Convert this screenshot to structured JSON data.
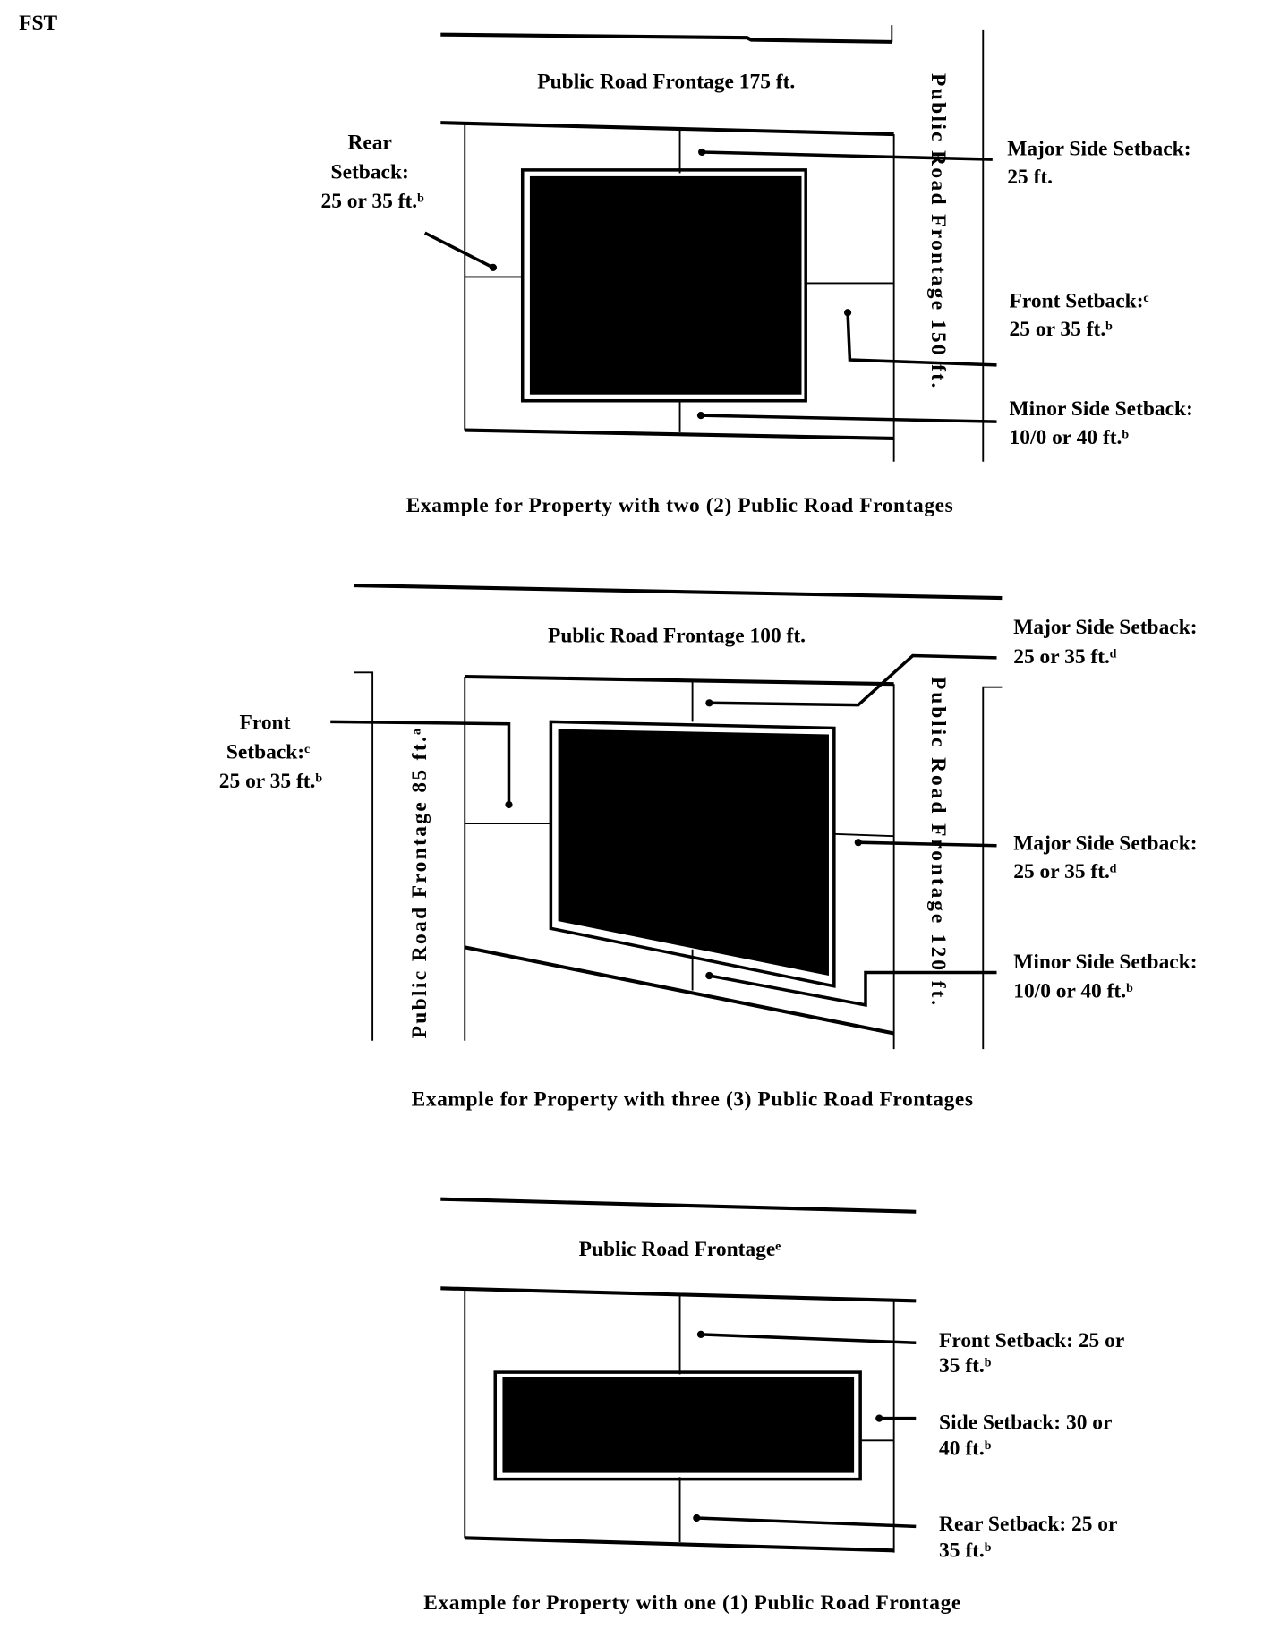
{
  "page_label": "FST",
  "diagrams": [
    {
      "road_top": "Public Road Frontage 175 ft.",
      "road_right": "Public Road Frontage 150 ft.",
      "rear": [
        "Rear",
        "Setback:",
        "25 or 35 ft.ᵇ"
      ],
      "major_side": [
        "Major Side Setback:",
        "25 ft."
      ],
      "front": [
        "Front Setback:ᶜ",
        "25 or 35 ft.ᵇ"
      ],
      "minor_side": [
        "Minor Side Setback:",
        "10/0 or 40 ft.ᵇ"
      ],
      "caption": "Example for Property with two (2) Public Road Frontages"
    },
    {
      "road_top": "Public Road Frontage 100 ft.",
      "road_left": "Public Road Frontage 85 ft.ᵃ",
      "road_right": "Public Road Frontage 120 ft.",
      "front": [
        "Front",
        "Setback:ᶜ",
        "25 or 35 ft.ᵇ"
      ],
      "major_side_top": [
        "Major Side Setback:",
        "25 or 35 ft.ᵈ"
      ],
      "major_side_right": [
        "Major Side Setback:",
        "25 or 35 ft.ᵈ"
      ],
      "minor_side": [
        "Minor Side Setback:",
        "10/0 or 40 ft.ᵇ"
      ],
      "caption": "Example for Property with three (3) Public Road Frontages"
    },
    {
      "road_top": "Public Road Frontageᵉ",
      "front": [
        "Front Setback: 25 or",
        "35 ft.ᵇ"
      ],
      "side": [
        "Side Setback: 30 or",
        "40 ft.ᵇ"
      ],
      "rear": [
        "Rear Setback: 25 or",
        "35 ft.ᵇ"
      ],
      "caption": "Example for Property with one (1) Public Road Frontage"
    }
  ]
}
